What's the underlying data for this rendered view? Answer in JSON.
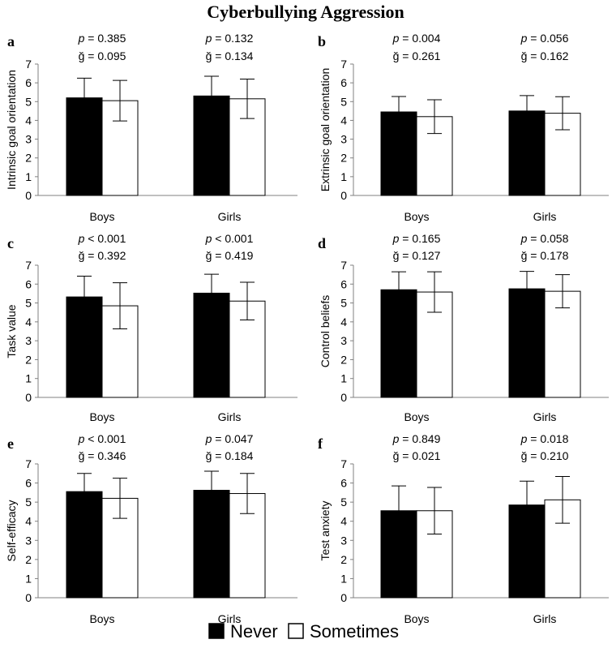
{
  "title": "Cyberbullying Aggression",
  "legend": [
    {
      "name": "Never",
      "color": "#000000"
    },
    {
      "name": "Sometimes",
      "color": "#ffffff"
    }
  ],
  "chart_data": [
    {
      "type": "bar",
      "panel": "a",
      "ylabel": "Intrinsic goal orientation",
      "categories": [
        "Boys",
        "Girls"
      ],
      "ylim": [
        0,
        7
      ],
      "yticks": [
        0,
        1,
        2,
        3,
        4,
        5,
        6,
        7
      ],
      "series": [
        {
          "name": "Never",
          "values": [
            5.2,
            5.3
          ],
          "errors": [
            1.05,
            1.05
          ]
        },
        {
          "name": "Sometimes",
          "values": [
            5.05,
            5.15
          ],
          "errors": [
            1.08,
            1.05
          ]
        }
      ],
      "annotations": [
        {
          "category": "Boys",
          "p_label": "p",
          "p_value": "= 0.385",
          "g_label": "ğ = 0.095"
        },
        {
          "category": "Girls",
          "p_label": "p",
          "p_value": "= 0.132",
          "g_label": "ğ = 0.134"
        }
      ]
    },
    {
      "type": "bar",
      "panel": "b",
      "ylabel": "Extrinsic goal orientation",
      "categories": [
        "Boys",
        "Girls"
      ],
      "ylim": [
        0,
        7
      ],
      "yticks": [
        0,
        1,
        2,
        3,
        4,
        5,
        6,
        7
      ],
      "series": [
        {
          "name": "Never",
          "values": [
            4.45,
            4.5
          ],
          "errors": [
            0.82,
            0.82
          ]
        },
        {
          "name": "Sometimes",
          "values": [
            4.2,
            4.38
          ],
          "errors": [
            0.9,
            0.88
          ]
        }
      ],
      "annotations": [
        {
          "category": "Boys",
          "p_label": "p",
          "p_value": "= 0.004",
          "g_label": "ğ = 0.261"
        },
        {
          "category": "Girls",
          "p_label": "p",
          "p_value": "= 0.056",
          "g_label": "ğ = 0.162"
        }
      ]
    },
    {
      "type": "bar",
      "panel": "c",
      "ylabel": "Task value",
      "categories": [
        "Boys",
        "Girls"
      ],
      "ylim": [
        0,
        7
      ],
      "yticks": [
        0,
        1,
        2,
        3,
        4,
        5,
        6,
        7
      ],
      "series": [
        {
          "name": "Never",
          "values": [
            5.32,
            5.52
          ],
          "errors": [
            1.1,
            1.0
          ]
        },
        {
          "name": "Sometimes",
          "values": [
            4.85,
            5.1
          ],
          "errors": [
            1.22,
            1.0
          ]
        }
      ],
      "annotations": [
        {
          "category": "Boys",
          "p_label": "p",
          "p_value": "< 0.001",
          "g_label": "ğ = 0.392"
        },
        {
          "category": "Girls",
          "p_label": "p",
          "p_value": "< 0.001",
          "g_label": "ğ = 0.419"
        }
      ]
    },
    {
      "type": "bar",
      "panel": "d",
      "ylabel": "Control beliefs",
      "categories": [
        "Boys",
        "Girls"
      ],
      "ylim": [
        0,
        7
      ],
      "yticks": [
        0,
        1,
        2,
        3,
        4,
        5,
        6,
        7
      ],
      "series": [
        {
          "name": "Never",
          "values": [
            5.7,
            5.75
          ],
          "errors": [
            0.95,
            0.92
          ]
        },
        {
          "name": "Sometimes",
          "values": [
            5.58,
            5.62
          ],
          "errors": [
            1.07,
            0.88
          ]
        }
      ],
      "annotations": [
        {
          "category": "Boys",
          "p_label": "p",
          "p_value": "= 0.165",
          "g_label": "ğ = 0.127"
        },
        {
          "category": "Girls",
          "p_label": "p",
          "p_value": "= 0.058",
          "g_label": "ğ = 0.178"
        }
      ]
    },
    {
      "type": "bar",
      "panel": "e",
      "ylabel": "Self-efficacy",
      "categories": [
        "Boys",
        "Girls"
      ],
      "ylim": [
        0,
        7
      ],
      "yticks": [
        0,
        1,
        2,
        3,
        4,
        5,
        6,
        7
      ],
      "series": [
        {
          "name": "Never",
          "values": [
            5.55,
            5.62
          ],
          "errors": [
            0.95,
            1.0
          ]
        },
        {
          "name": "Sometimes",
          "values": [
            5.2,
            5.45
          ],
          "errors": [
            1.05,
            1.05
          ]
        }
      ],
      "annotations": [
        {
          "category": "Boys",
          "p_label": "p",
          "p_value": "< 0.001",
          "g_label": "ğ = 0.346"
        },
        {
          "category": "Girls",
          "p_label": "p",
          "p_value": "= 0.047",
          "g_label": "ğ = 0.184"
        }
      ]
    },
    {
      "type": "bar",
      "panel": "f",
      "ylabel": "Test anxiety",
      "categories": [
        "Boys",
        "Girls"
      ],
      "ylim": [
        0,
        7
      ],
      "yticks": [
        0,
        1,
        2,
        3,
        4,
        5,
        6,
        7
      ],
      "series": [
        {
          "name": "Never",
          "values": [
            4.55,
            4.85
          ],
          "errors": [
            1.3,
            1.25
          ]
        },
        {
          "name": "Sometimes",
          "values": [
            4.55,
            5.12
          ],
          "errors": [
            1.22,
            1.22
          ]
        }
      ],
      "annotations": [
        {
          "category": "Boys",
          "p_label": "p",
          "p_value": "= 0.849",
          "g_label": "ğ = 0.021"
        },
        {
          "category": "Girls",
          "p_label": "p",
          "p_value": "= 0.018",
          "g_label": "ğ = 0.210"
        }
      ]
    }
  ]
}
